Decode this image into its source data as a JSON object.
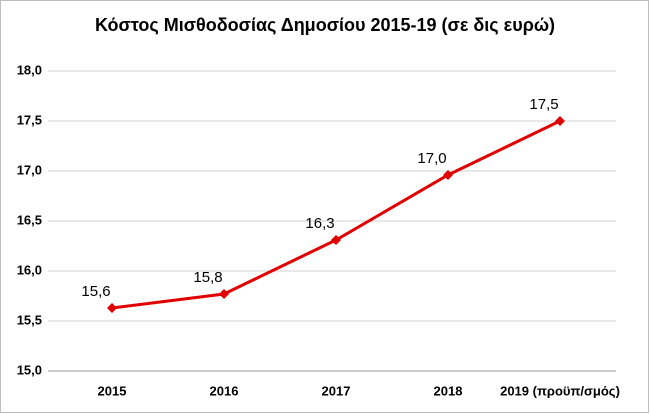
{
  "chart_data": {
    "type": "line",
    "title": "Κόστος Μισθοδοσίας  Δημοσίου  2015-19 (σε δις ευρώ)",
    "categories": [
      "2015",
      "2016",
      "2017",
      "2018",
      "2019 (προϋπ/σμός)"
    ],
    "values": [
      15.63,
      15.77,
      16.31,
      16.96,
      17.5
    ],
    "value_labels": [
      "15,6",
      "15,8",
      "16,3",
      "17,0",
      "17,5"
    ],
    "color": "#e00000",
    "ylim": [
      15.0,
      18.0
    ],
    "yticks": [
      {
        "value": 15.0,
        "label": "15,0"
      },
      {
        "value": 15.5,
        "label": "15,5"
      },
      {
        "value": 16.0,
        "label": "16,0"
      },
      {
        "value": 16.5,
        "label": "16,5"
      },
      {
        "value": 17.0,
        "label": "17,0"
      },
      {
        "value": 17.5,
        "label": "17,5"
      },
      {
        "value": 18.0,
        "label": "18,0"
      }
    ],
    "grid": true
  }
}
